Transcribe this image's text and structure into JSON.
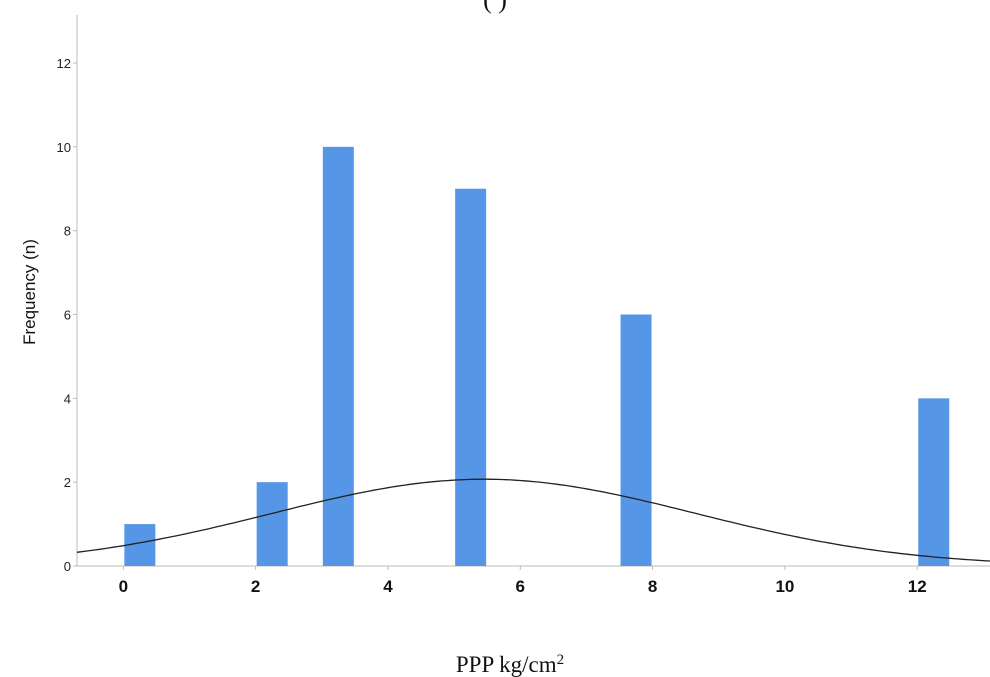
{
  "chart_data": {
    "type": "bar",
    "title": "",
    "title_fragment": "( )",
    "xlabel": "PPP kg/cm",
    "xlabel_sup": "2",
    "ylabel": "Frequency (n)",
    "xlim": [
      -0.7,
      13.1
    ],
    "ylim": [
      0,
      12
    ],
    "xticks": [
      0,
      2,
      4,
      6,
      8,
      10,
      12
    ],
    "yticks": [
      0,
      2,
      4,
      6,
      8,
      10,
      12
    ],
    "bars": [
      {
        "x": 0.25,
        "value": 1
      },
      {
        "x": 2.25,
        "value": 2
      },
      {
        "x": 3.25,
        "value": 10
      },
      {
        "x": 5.25,
        "value": 9
      },
      {
        "x": 7.75,
        "value": 6
      },
      {
        "x": 12.25,
        "value": 4
      }
    ],
    "bar_color": "#5596E6",
    "curve": {
      "type": "normal",
      "mean": 5.45,
      "sd": 3.2,
      "peak": 2.07,
      "color": "#222222"
    },
    "grid": false,
    "legend": "none"
  }
}
